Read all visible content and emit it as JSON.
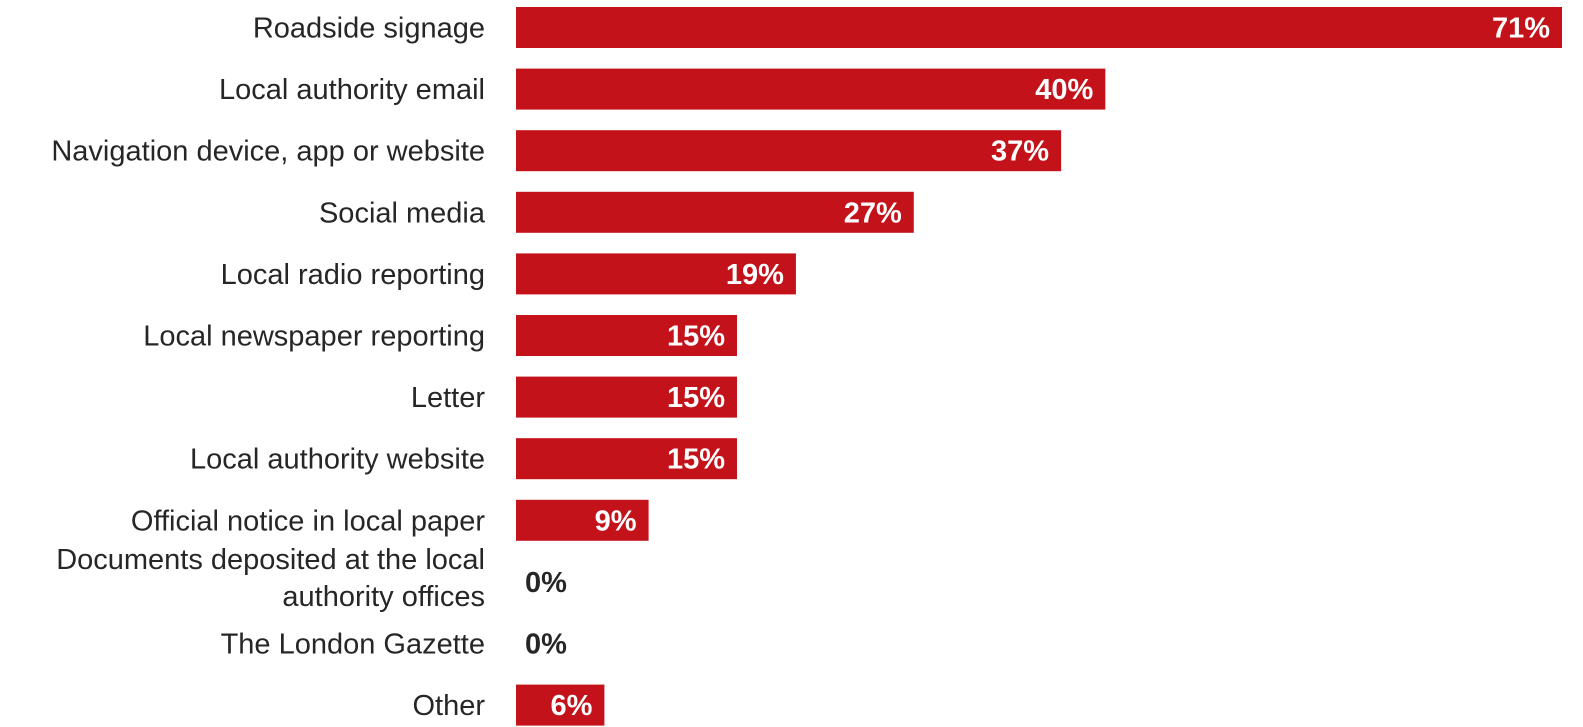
{
  "chart_data": {
    "type": "bar",
    "orientation": "horizontal",
    "categories": [
      "Roadside signage",
      "Local authority email",
      "Navigation device, app or website",
      "Social media",
      "Local radio reporting",
      "Local newspaper reporting",
      "Letter",
      "Local authority website",
      "Official notice in local paper",
      "Documents deposited at the local authority offices",
      "The London Gazette",
      "Other"
    ],
    "values": [
      71,
      40,
      37,
      27,
      19,
      15,
      15,
      15,
      9,
      0,
      0,
      6
    ],
    "value_labels": [
      "71%",
      "40%",
      "37%",
      "27%",
      "19%",
      "15%",
      "15%",
      "15%",
      "9%",
      "0%",
      "0%",
      "6%"
    ],
    "title": "",
    "xlabel": "",
    "ylabel": "",
    "xlim": [
      0,
      71
    ],
    "grid": false,
    "legend": "none",
    "bar_color": "#c4121a",
    "label_inside_color": "#ffffff",
    "label_outside_color": "#262626"
  }
}
